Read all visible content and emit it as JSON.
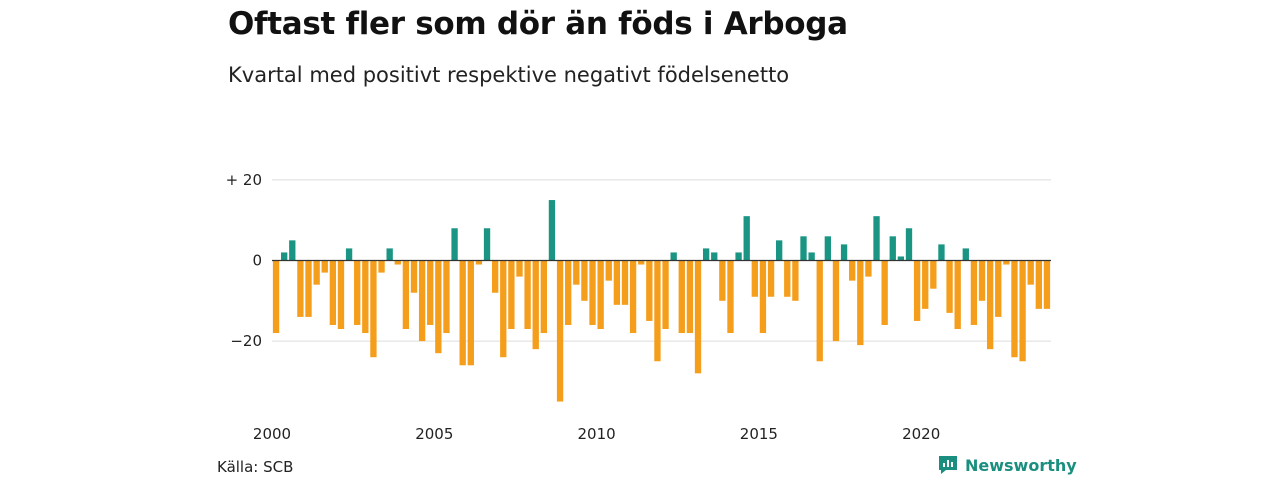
{
  "header": {
    "title": "Oftast fler som dör än föds i Arboga",
    "subtitle": "Kvartal med positivt respektive negativt födelsenetto"
  },
  "footer": {
    "source": "Källa: SCB",
    "brand": "Newsworthy",
    "brand_icon": "newsworthy-logo-icon"
  },
  "chart_data": {
    "type": "bar",
    "x_start": "2000 Q1",
    "x_end": "2023 Q4",
    "ylim": [
      -35,
      20
    ],
    "y_ticks": [
      20,
      0,
      -20
    ],
    "y_tick_labels": [
      "+ 20",
      "0",
      "−20"
    ],
    "x_tick_labels": [
      "2000",
      "2005",
      "2010",
      "2015",
      "2020"
    ],
    "grid": true,
    "colors": {
      "positive": "#1a9583",
      "negative": "#f59e1c",
      "grid": "#dddddd",
      "zero_line": "#333333"
    },
    "values": [
      -18,
      2,
      5,
      -14,
      -14,
      -6,
      -3,
      -16,
      -17,
      3,
      -16,
      -18,
      -24,
      -3,
      3,
      -1,
      -17,
      -8,
      -20,
      -16,
      -23,
      -18,
      8,
      -26,
      -26,
      -1,
      8,
      -8,
      -24,
      -17,
      -4,
      -17,
      -22,
      -18,
      15,
      -35,
      -16,
      -6,
      -10,
      -16,
      -17,
      -5,
      -11,
      -11,
      -18,
      -1,
      -15,
      -25,
      -17,
      2,
      -18,
      -18,
      -28,
      3,
      2,
      -10,
      -18,
      2,
      11,
      -9,
      -18,
      -9,
      5,
      -9,
      -10,
      6,
      2,
      -25,
      6,
      -20,
      4,
      -5,
      -21,
      -4,
      11,
      -16,
      6,
      1,
      8,
      -15,
      -12,
      -7,
      4,
      -13,
      -17,
      3,
      -16,
      -10,
      -22,
      -14,
      -1,
      -24,
      -25,
      -6,
      -12,
      -12
    ]
  }
}
